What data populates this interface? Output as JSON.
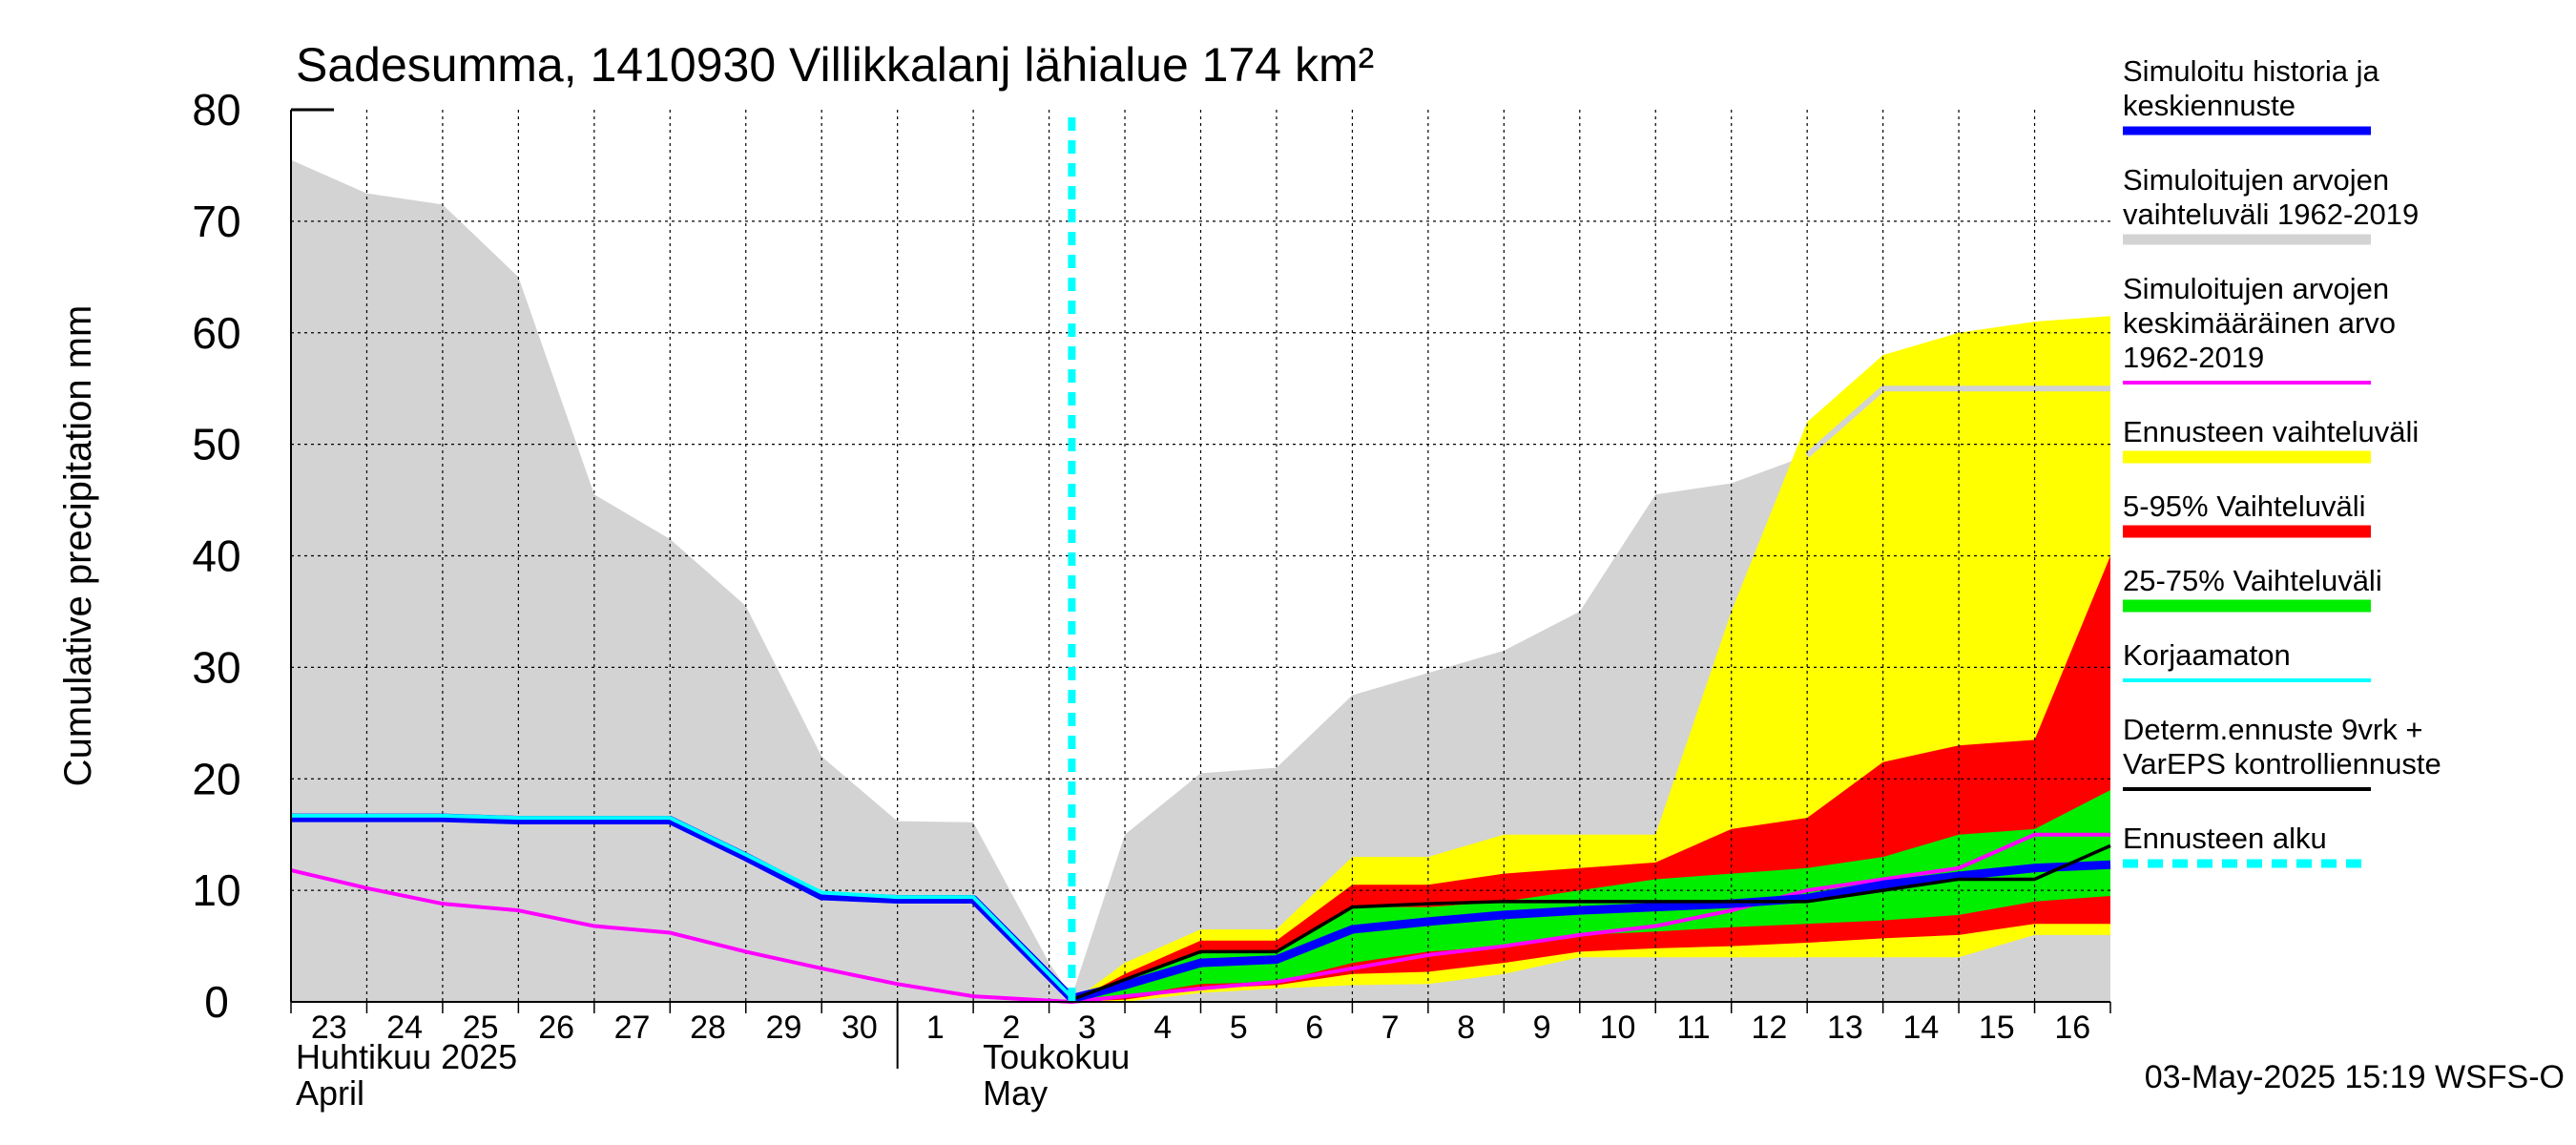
{
  "chart_data": {
    "type": "area",
    "title": "Sadesumma, 1410930 Villikkalanj lähialue 174 km²",
    "ylabel": "Cumulative precipitation   mm",
    "ylim": [
      0,
      80
    ],
    "yticks": [
      0,
      10,
      20,
      30,
      40,
      50,
      60,
      70,
      80
    ],
    "grid": true,
    "legend_placement": "right",
    "x_day_labels": [
      "23",
      "24",
      "25",
      "26",
      "27",
      "28",
      "29",
      "30",
      "1",
      "2",
      "3",
      "4",
      "5",
      "6",
      "7",
      "8",
      "9",
      "10",
      "11",
      "12",
      "13",
      "14",
      "15",
      "16"
    ],
    "month_labels": [
      {
        "line1": "Huhtikuu  2025",
        "line2": "April"
      },
      {
        "line1": "Toukokuu",
        "line2": "May"
      }
    ],
    "forecast_start_day": 10.3,
    "footer": "03-May-2025 15:19 WSFS-O",
    "colors": {
      "historical_range": "#d3d3d3",
      "forecast_range": "#ffff00",
      "range_5_95": "#ff0000",
      "range_25_75": "#00ee00",
      "simulated": "#0000ff",
      "mean": "#ff00ff",
      "uncorrected": "#00ffff",
      "determ": "#000000",
      "forecast_start": "#00ffff"
    },
    "legend": [
      {
        "label": "Simuloitu historia ja keskiennuste",
        "lines": [
          "Simuloitu historia ja",
          "keskiennuste"
        ],
        "type": "line",
        "color": "#0000ff",
        "thick": 9
      },
      {
        "label": "Simuloitujen arvojen vaihteluväli 1962-2019",
        "lines": [
          "Simuloitujen arvojen",
          "vaihteluväli 1962-2019"
        ],
        "type": "line",
        "color": "#d3d3d3",
        "thick": 11
      },
      {
        "label": "Simuloitujen arvojen keskimääräinen arvo 1962-2019",
        "lines": [
          "Simuloitujen arvojen",
          "keskimääräinen arvo",
          "   1962-2019"
        ],
        "type": "line",
        "color": "#ff00ff",
        "thick": 4
      },
      {
        "label": "Ennusteen vaihteluväli",
        "lines": [
          "Ennusteen vaihteluväli"
        ],
        "type": "line",
        "color": "#ffff00",
        "thick": 13
      },
      {
        "label": "5-95% Vaihteluväli",
        "lines": [
          "5-95% Vaihteluväli"
        ],
        "type": "line",
        "color": "#ff0000",
        "thick": 13
      },
      {
        "label": "25-75% Vaihteluväli",
        "lines": [
          "25-75% Vaihteluväli"
        ],
        "type": "line",
        "color": "#00ee00",
        "thick": 13
      },
      {
        "label": "Korjaamaton",
        "lines": [
          "Korjaamaton"
        ],
        "type": "line",
        "color": "#00ffff",
        "thick": 4
      },
      {
        "label": "Determ.ennuste 9vrk + VarEPS kontrolliennuste",
        "lines": [
          "Determ.ennuste 9vrk +",
          "VarEPS kontrolliennuste"
        ],
        "type": "line",
        "color": "#000000",
        "thick": 4
      },
      {
        "label": "Ennusteen alku",
        "lines": [
          "Ennusteen alku"
        ],
        "type": "dashed",
        "color": "#00ffff",
        "thick": 9
      }
    ],
    "historical_band": {
      "x": [
        0,
        1,
        2,
        3,
        4,
        5,
        6,
        7,
        8,
        9,
        10,
        10.3,
        11,
        12,
        13,
        14,
        15,
        16,
        17,
        18,
        19,
        20,
        21,
        22,
        23,
        24
      ],
      "upper": [
        75.5,
        72.5,
        71.5,
        65,
        45.5,
        41.5,
        35.5,
        22,
        16.2,
        16.1,
        3.5,
        0.5,
        15,
        20.5,
        21,
        27.5,
        29.5,
        31.5,
        35,
        45.5,
        46.5,
        49,
        55,
        55,
        55,
        55
      ],
      "lower": [
        0,
        0,
        0,
        0,
        0,
        0,
        0,
        0,
        0,
        0,
        0,
        0,
        0,
        0,
        0,
        0,
        0,
        0,
        0,
        0,
        0,
        0,
        0,
        0,
        0,
        0
      ]
    },
    "forecast_bands": {
      "x": [
        10.3,
        11,
        12,
        13,
        14,
        15,
        16,
        17,
        18,
        19,
        20,
        21,
        22,
        23,
        24
      ],
      "yellow_upper": [
        0,
        3.5,
        6.5,
        6.5,
        13,
        13,
        15,
        15,
        15,
        35,
        52,
        58,
        60,
        61,
        61.5
      ],
      "yellow_lower": [
        0,
        0,
        0.8,
        1.2,
        1.5,
        1.6,
        2.5,
        4,
        4,
        4,
        4,
        4,
        4,
        6,
        6
      ],
      "red_upper": [
        0,
        2.5,
        5.5,
        5.5,
        10.5,
        10.5,
        11.5,
        12,
        12.5,
        15.5,
        16.5,
        21.5,
        23,
        23.5,
        40
      ],
      "red_lower": [
        0,
        0.2,
        1.2,
        1.5,
        2.5,
        2.7,
        3.5,
        4.5,
        4.8,
        5,
        5.3,
        5.7,
        6,
        7,
        7
      ],
      "green_upper": [
        0,
        2,
        4.5,
        4.5,
        8.5,
        8.5,
        9,
        10,
        11,
        11.5,
        12,
        13,
        15,
        15.5,
        19
      ],
      "green_lower": [
        0,
        0.5,
        1.6,
        1.8,
        3.5,
        4.5,
        5,
        6,
        6.3,
        6.7,
        7,
        7.3,
        7.8,
        9,
        9.5
      ]
    },
    "series": [
      {
        "name": "Simuloitu historia ja keskiennuste",
        "x": [
          0,
          1,
          2,
          3,
          4,
          5,
          6,
          7,
          8,
          9,
          10.3,
          11,
          12,
          13,
          14,
          15,
          16,
          17,
          18,
          19,
          20,
          21,
          22,
          23,
          24
        ],
        "values": [
          16.5,
          16.5,
          16.5,
          16.3,
          16.3,
          16.3,
          13,
          9.5,
          9.2,
          9.2,
          0.3,
          1.5,
          3.5,
          3.8,
          6.5,
          7.2,
          7.8,
          8.2,
          8.5,
          8.8,
          9.3,
          10.5,
          11.3,
          12,
          12.3
        ]
      },
      {
        "name": "Simuloitujen arvojen keskimääräinen arvo 1962-2019",
        "x": [
          0,
          1,
          2,
          3,
          4,
          5,
          6,
          7,
          8,
          9,
          10.3,
          11,
          12,
          13,
          14,
          15,
          16,
          17,
          18,
          19,
          20,
          21,
          22,
          23,
          24
        ],
        "values": [
          11.8,
          10.2,
          8.8,
          8.2,
          6.8,
          6.2,
          4.5,
          3,
          1.6,
          0.5,
          0,
          0.5,
          1.2,
          1.8,
          3,
          4.2,
          5,
          6,
          6.8,
          8.2,
          10,
          11,
          12,
          15,
          15
        ]
      },
      {
        "name": "Korjaamaton",
        "x": [
          0,
          1,
          2,
          3,
          4,
          5,
          6,
          7,
          8,
          9,
          10.3
        ],
        "values": [
          16.7,
          16.7,
          16.7,
          16.5,
          16.5,
          16.5,
          13.2,
          9.8,
          9.4,
          9.4,
          0.4
        ]
      },
      {
        "name": "Determ.ennuste 9vrk + VarEPS kontrolliennuste",
        "x": [
          10.3,
          11,
          12,
          13,
          14,
          15,
          16,
          17,
          18,
          19,
          20,
          21,
          22,
          23,
          24
        ],
        "values": [
          0.2,
          2,
          4.5,
          4.5,
          8.5,
          8.8,
          9,
          9,
          9,
          9,
          9,
          10,
          11,
          11,
          14
        ]
      }
    ]
  }
}
